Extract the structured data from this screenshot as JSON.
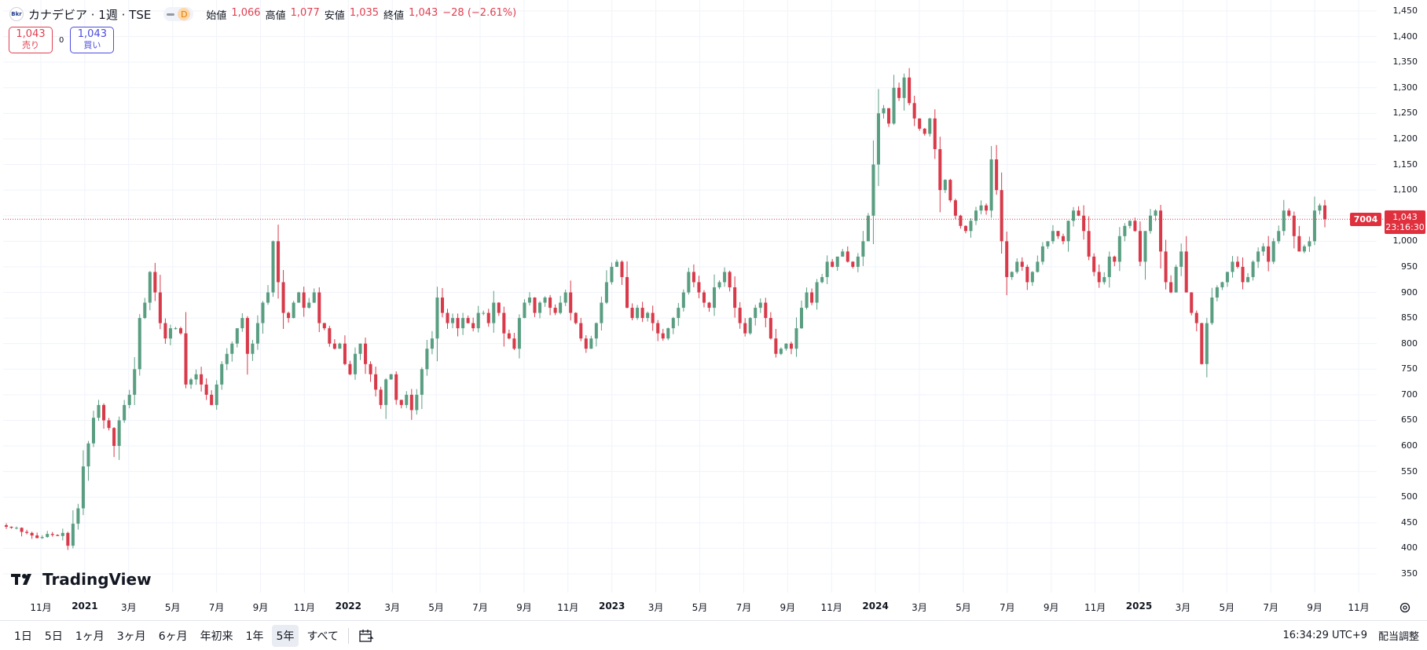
{
  "symbol": {
    "logo_text": "Bkr",
    "title": "カナデビア · 1週 · TSE",
    "pill_letter": "D",
    "ohlc": [
      {
        "k": "始値",
        "v": "1,066"
      },
      {
        "k": "高値",
        "v": "1,077"
      },
      {
        "k": "安値",
        "v": "1,035"
      },
      {
        "k": "終値",
        "v": "1,043"
      },
      {
        "k": "",
        "v": "−28 (−2.61%)"
      }
    ]
  },
  "trade": {
    "sell_price": "1,043",
    "sell_label": "売り",
    "spread": "0",
    "buy_price": "1,043",
    "buy_label": "買い"
  },
  "logo_text": "TradingView",
  "price_axis": [
    "1,450",
    "1,400",
    "1,350",
    "1,300",
    "1,250",
    "1,200",
    "1,150",
    "1,100",
    "1,050",
    "1,000",
    "950",
    "900",
    "850",
    "800",
    "750",
    "700",
    "650",
    "600",
    "550",
    "500",
    "450",
    "400",
    "350"
  ],
  "time_axis": [
    {
      "label": "11月",
      "bold": false
    },
    {
      "label": "2021",
      "bold": true
    },
    {
      "label": "3月",
      "bold": false
    },
    {
      "label": "5月",
      "bold": false
    },
    {
      "label": "7月",
      "bold": false
    },
    {
      "label": "9月",
      "bold": false
    },
    {
      "label": "11月",
      "bold": false
    },
    {
      "label": "2022",
      "bold": true
    },
    {
      "label": "3月",
      "bold": false
    },
    {
      "label": "5月",
      "bold": false
    },
    {
      "label": "7月",
      "bold": false
    },
    {
      "label": "9月",
      "bold": false
    },
    {
      "label": "11月",
      "bold": false
    },
    {
      "label": "2023",
      "bold": true
    },
    {
      "label": "3月",
      "bold": false
    },
    {
      "label": "5月",
      "bold": false
    },
    {
      "label": "7月",
      "bold": false
    },
    {
      "label": "9月",
      "bold": false
    },
    {
      "label": "11月",
      "bold": false
    },
    {
      "label": "2024",
      "bold": true
    },
    {
      "label": "3月",
      "bold": false
    },
    {
      "label": "5月",
      "bold": false
    },
    {
      "label": "7月",
      "bold": false
    },
    {
      "label": "9月",
      "bold": false
    },
    {
      "label": "11月",
      "bold": false
    },
    {
      "label": "2025",
      "bold": true
    },
    {
      "label": "3月",
      "bold": false
    },
    {
      "label": "5月",
      "bold": false
    },
    {
      "label": "7月",
      "bold": false
    },
    {
      "label": "9月",
      "bold": false
    },
    {
      "label": "11月",
      "bold": false
    }
  ],
  "last_price_tag": {
    "symbol": "7004",
    "price": "1,043",
    "countdown": "23:16:30"
  },
  "ranges": [
    "1日",
    "5日",
    "1ヶ月",
    "3ヶ月",
    "6ヶ月",
    "年初来",
    "1年",
    "5年",
    "すべて"
  ],
  "active_range": "5年",
  "status": {
    "time": "16:34:29 UTC+9",
    "adjust": "配当調整"
  },
  "colors": {
    "up": "#5a9e82",
    "down": "#d83a4a",
    "last_line": "#e0303e",
    "grid": "#f0f3fa"
  },
  "chart_data": {
    "type": "candlestick",
    "interval": "1W",
    "ylim": [
      330,
      1460
    ],
    "last_close": 1043,
    "closes": [
      442,
      440,
      440,
      432,
      430,
      425,
      420,
      422,
      428,
      426,
      424,
      430,
      405,
      448,
      478,
      560,
      605,
      655,
      680,
      650,
      635,
      600,
      650,
      680,
      700,
      750,
      850,
      880,
      940,
      900,
      840,
      810,
      830,
      830,
      820,
      720,
      730,
      740,
      720,
      700,
      680,
      720,
      760,
      780,
      800,
      830,
      850,
      780,
      800,
      840,
      880,
      900,
      1000,
      920,
      860,
      850,
      880,
      900,
      870,
      880,
      900,
      840,
      830,
      800,
      790,
      800,
      760,
      740,
      780,
      800,
      760,
      740,
      710,
      680,
      730,
      740,
      690,
      680,
      700,
      670,
      700,
      750,
      790,
      810,
      890,
      860,
      840,
      850,
      830,
      850,
      840,
      830,
      860,
      860,
      840,
      880,
      860,
      820,
      810,
      790,
      850,
      880,
      890,
      860,
      880,
      890,
      870,
      860,
      880,
      900,
      860,
      840,
      810,
      790,
      810,
      840,
      880,
      920,
      950,
      960,
      930,
      870,
      850,
      870,
      850,
      860,
      840,
      820,
      810,
      830,
      850,
      870,
      900,
      940,
      920,
      900,
      880,
      870,
      910,
      920,
      940,
      910,
      870,
      840,
      820,
      850,
      870,
      880,
      850,
      810,
      780,
      790,
      800,
      790,
      830,
      870,
      900,
      880,
      920,
      930,
      960,
      950,
      970,
      980,
      960,
      950,
      970,
      1000,
      1050,
      1150,
      1250,
      1260,
      1230,
      1300,
      1280,
      1320,
      1270,
      1240,
      1220,
      1210,
      1240,
      1180,
      1100,
      1120,
      1080,
      1050,
      1030,
      1020,
      1040,
      1060,
      1070,
      1060,
      1160,
      1100,
      1000,
      930,
      940,
      960,
      950,
      920,
      940,
      960,
      990,
      1000,
      1020,
      1010,
      1000,
      1040,
      1060,
      1050,
      1020,
      970,
      940,
      920,
      930,
      970,
      960,
      1010,
      1030,
      1040,
      1020,
      960,
      1020,
      1050,
      1060,
      980,
      920,
      900,
      950,
      980,
      900,
      860,
      840,
      760,
      840,
      890,
      910,
      920,
      940,
      960,
      950,
      920,
      930,
      960,
      980,
      990,
      960,
      1000,
      1020,
      1060,
      1050,
      1010,
      980,
      990,
      1000,
      1060,
      1070,
      1043
    ],
    "price_labels": [
      "1,450",
      "1,400",
      "1,350",
      "1,300",
      "1,250",
      "1,200",
      "1,150",
      "1,100",
      "1,050",
      "1,000",
      "950",
      "900",
      "850",
      "800",
      "750",
      "700",
      "650",
      "600",
      "550",
      "500",
      "450",
      "400",
      "350"
    ]
  }
}
